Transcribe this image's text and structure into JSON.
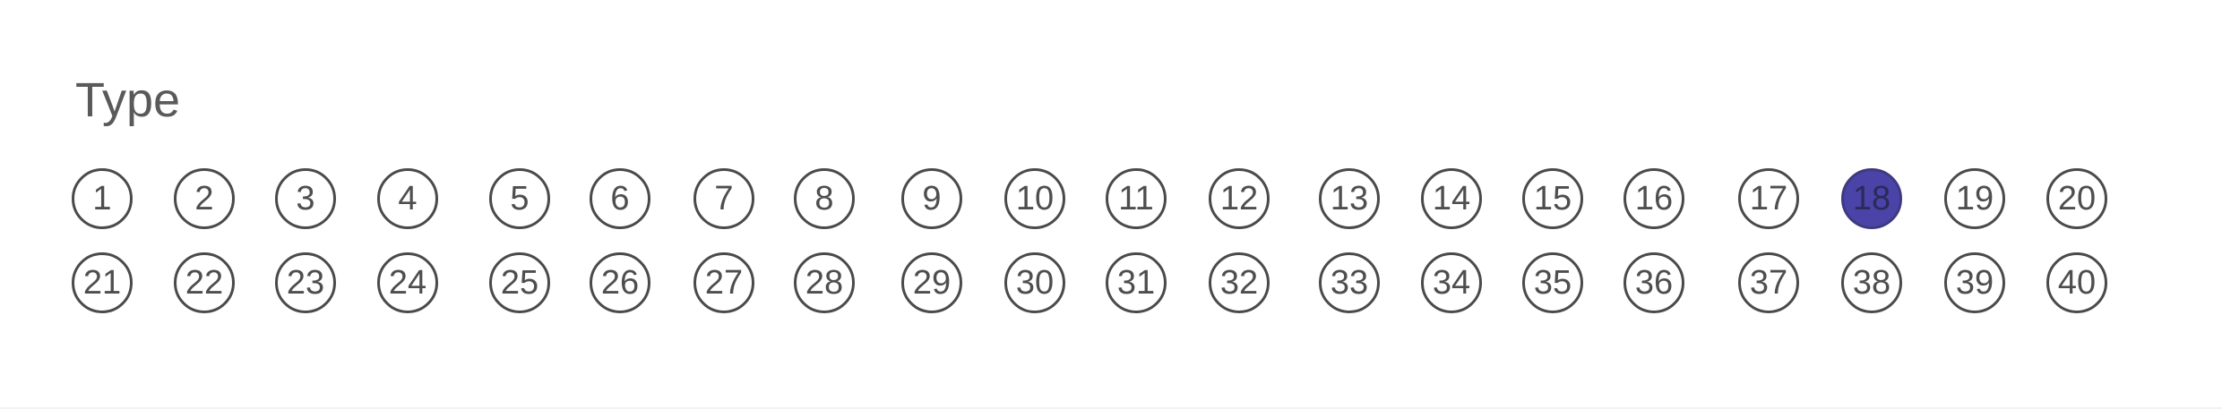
{
  "title": "Type",
  "selected": "18",
  "rows": [
    [
      "1",
      "2",
      "3",
      "4",
      "5",
      "6",
      "7",
      "8",
      "9",
      "10",
      "11",
      "12",
      "13",
      "14",
      "15",
      "16",
      "17",
      "18",
      "19",
      "20"
    ],
    [
      "21",
      "22",
      "23",
      "24",
      "25",
      "26",
      "27",
      "28",
      "29",
      "30",
      "31",
      "32",
      "33",
      "34",
      "35",
      "36",
      "37",
      "38",
      "39",
      "40"
    ]
  ],
  "colors": {
    "filled": "#4b44a8",
    "outline": "#4a4a4a",
    "text": "#4e4e4e"
  }
}
